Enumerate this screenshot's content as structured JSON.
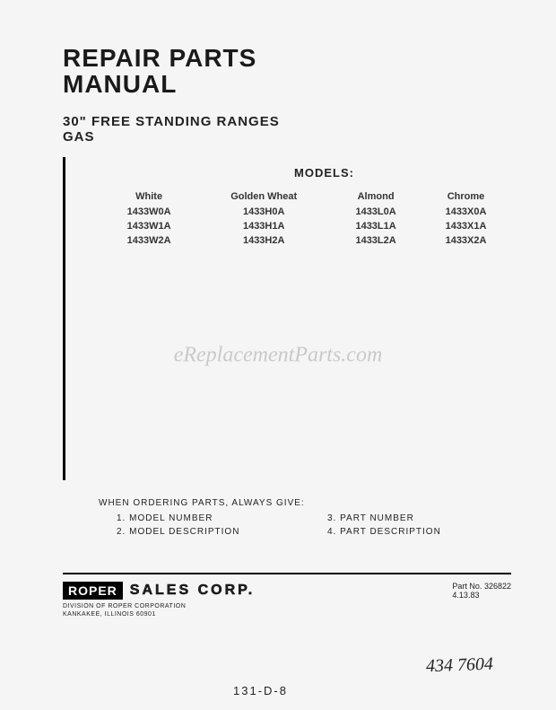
{
  "title_line1": "REPAIR PARTS",
  "title_line2": "MANUAL",
  "subtitle_line1": "30\" FREE STANDING RANGES",
  "subtitle_line2": "GAS",
  "models_label": "MODELS:",
  "models": {
    "columns": [
      "White",
      "Golden Wheat",
      "Almond",
      "Chrome"
    ],
    "rows": [
      [
        "1433W0A",
        "1433H0A",
        "1433L0A",
        "1433X0A"
      ],
      [
        "1433W1A",
        "1433H1A",
        "1433L1A",
        "1433X1A"
      ],
      [
        "1433W2A",
        "1433H2A",
        "1433L2A",
        "1433X2A"
      ]
    ]
  },
  "ordering": {
    "heading": "WHEN ORDERING PARTS, ALWAYS GIVE:",
    "items": [
      "1. MODEL NUMBER",
      "3. PART NUMBER",
      "2. MODEL DESCRIPTION",
      "4. PART DESCRIPTION"
    ]
  },
  "footer": {
    "logo": "ROPER",
    "company": "SALES CORP.",
    "part_no_label": "Part No.",
    "part_no": "326822",
    "date": "4.13.83",
    "division_line1": "DIVISION OF ROPER CORPORATION",
    "division_line2": "KANKAKEE, ILLINOIS 60901"
  },
  "handwritten": {
    "note1": "434 7604",
    "note2": "131-D-8"
  },
  "watermark": "eReplacementParts.com",
  "colors": {
    "text": "#1a1a1a",
    "bg": "#f5f5f5",
    "rule": "#000000"
  }
}
